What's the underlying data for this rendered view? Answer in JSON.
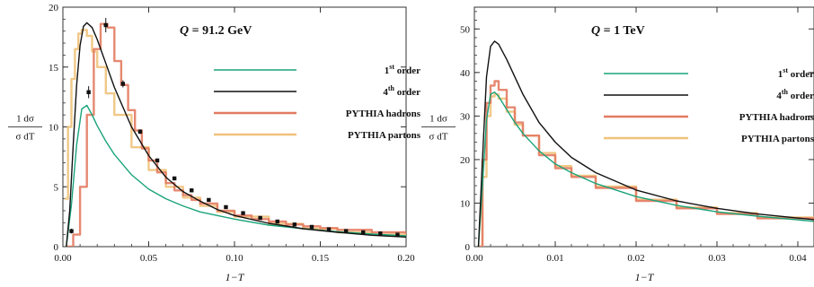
{
  "chart_data": [
    {
      "type": "line",
      "title": "Q = 91.2 GeV",
      "title_var": "Q",
      "title_rest": " = 91.2 GeV",
      "xlabel": "1−T",
      "ylabel_num": "1 dσ",
      "ylabel_den": "σ dT",
      "xlim": [
        0,
        0.2
      ],
      "ylim": [
        0,
        20
      ],
      "xticks": [
        "0.00",
        "0.05",
        "0.10",
        "0.15",
        "0.20"
      ],
      "xtick_values": [
        0,
        0.05,
        0.1,
        0.15,
        0.2
      ],
      "yticks": [
        "0",
        "5",
        "10",
        "15",
        "20"
      ],
      "ytick_values": [
        0,
        5,
        10,
        15,
        20
      ],
      "grid": false,
      "legend_position": "right",
      "series": [
        {
          "name": "1st order",
          "name_base": "1",
          "name_sup": "st",
          "name_rest": " order",
          "color": "#1aa37a",
          "x": [
            0.002,
            0.005,
            0.008,
            0.011,
            0.014,
            0.017,
            0.02,
            0.025,
            0.03,
            0.04,
            0.05,
            0.06,
            0.07,
            0.08,
            0.09,
            0.1,
            0.12,
            0.14,
            0.16,
            0.18,
            0.2
          ],
          "y": [
            0,
            3.5,
            8.5,
            11.5,
            11.8,
            11.0,
            10.1,
            8.8,
            7.7,
            6.0,
            4.8,
            4.0,
            3.4,
            2.9,
            2.6,
            2.3,
            1.8,
            1.5,
            1.25,
            1.05,
            0.9
          ]
        },
        {
          "name": "4th order",
          "name_base": "4",
          "name_sup": "th",
          "name_rest": " order",
          "color": "#111111",
          "x": [
            0.002,
            0.004,
            0.006,
            0.008,
            0.01,
            0.012,
            0.014,
            0.017,
            0.02,
            0.025,
            0.03,
            0.04,
            0.05,
            0.06,
            0.07,
            0.08,
            0.09,
            0.1,
            0.12,
            0.14,
            0.16,
            0.18,
            0.2
          ],
          "y": [
            0,
            3,
            8.5,
            13.5,
            16.8,
            18.4,
            18.7,
            18.3,
            17.3,
            15.3,
            13.3,
            10.0,
            7.6,
            5.8,
            4.6,
            3.8,
            3.1,
            2.6,
            1.95,
            1.5,
            1.2,
            0.95,
            0.8
          ]
        },
        {
          "name": "PYTHIA hadrons",
          "color": "#e37b62",
          "x": [
            0.002,
            0.006,
            0.01,
            0.014,
            0.018,
            0.022,
            0.026,
            0.03,
            0.034,
            0.038,
            0.042,
            0.046,
            0.05,
            0.055,
            0.06,
            0.065,
            0.07,
            0.075,
            0.08,
            0.09,
            0.1,
            0.11,
            0.12,
            0.13,
            0.14,
            0.15,
            0.16,
            0.18,
            0.2
          ],
          "y": [
            0,
            1,
            5,
            11,
            16.5,
            18.6,
            18.3,
            15.5,
            13.5,
            11.4,
            9.7,
            8.2,
            7.2,
            6.2,
            5.3,
            4.7,
            4.3,
            3.9,
            3.6,
            3.0,
            2.6,
            2.3,
            2.1,
            1.85,
            1.7,
            1.55,
            1.4,
            1.2,
            1.05
          ]
        },
        {
          "name": "PYTHIA partons",
          "color": "#f0c27a",
          "x": [
            0.001,
            0.003,
            0.005,
            0.007,
            0.009,
            0.011,
            0.014,
            0.017,
            0.02,
            0.025,
            0.03,
            0.04,
            0.05,
            0.06,
            0.07,
            0.08,
            0.09,
            0.1,
            0.12,
            0.14,
            0.16,
            0.18,
            0.2
          ],
          "y": [
            4,
            10,
            14,
            16.5,
            17.8,
            18.1,
            17.6,
            16.3,
            15.0,
            12.8,
            11.0,
            8.3,
            6.4,
            5.0,
            4.1,
            3.4,
            2.9,
            2.5,
            1.9,
            1.5,
            1.2,
            1.0,
            0.85
          ]
        }
      ],
      "data_points": {
        "x": [
          0.005,
          0.015,
          0.025,
          0.035,
          0.045,
          0.055,
          0.065,
          0.075,
          0.085,
          0.095,
          0.105,
          0.115,
          0.125,
          0.135,
          0.145,
          0.155,
          0.165,
          0.175,
          0.185,
          0.195
        ],
        "y": [
          1.3,
          12.9,
          18.5,
          13.6,
          9.6,
          7.2,
          5.7,
          4.7,
          3.9,
          3.3,
          2.8,
          2.4,
          2.1,
          1.85,
          1.65,
          1.45,
          1.3,
          1.2,
          1.1,
          1.0
        ],
        "err": [
          0.2,
          0.5,
          0.6,
          0.3,
          0.2,
          0.15,
          0.1,
          0.1,
          0.1,
          0.08,
          0.07,
          0.06,
          0.06,
          0.05,
          0.05,
          0.05,
          0.05,
          0.05,
          0.05,
          0.05
        ]
      }
    },
    {
      "type": "line",
      "title": "Q = 1 TeV",
      "title_var": "Q",
      "title_rest": " = 1 TeV",
      "xlabel": "1−T",
      "ylabel_num": "1 dσ",
      "ylabel_den": "σ dT",
      "xlim": [
        0,
        0.042
      ],
      "ylim": [
        0,
        55
      ],
      "xticks": [
        "0.00",
        "0.01",
        "0.02",
        "0.03",
        "0.04"
      ],
      "xtick_values": [
        0,
        0.01,
        0.02,
        0.03,
        0.04
      ],
      "yticks": [
        "0",
        "10",
        "20",
        "30",
        "40",
        "50"
      ],
      "ytick_values": [
        0,
        10,
        20,
        30,
        40,
        50
      ],
      "grid": false,
      "legend_position": "right",
      "series": [
        {
          "name": "1st order",
          "name_base": "1",
          "name_sup": "st",
          "name_rest": " order",
          "color": "#1aa37a",
          "x": [
            0.0005,
            0.001,
            0.0015,
            0.002,
            0.0025,
            0.003,
            0.004,
            0.005,
            0.006,
            0.008,
            0.01,
            0.012,
            0.015,
            0.02,
            0.025,
            0.03,
            0.035,
            0.042
          ],
          "y": [
            0,
            14,
            29,
            35,
            35.5,
            34.5,
            31.5,
            28.5,
            26,
            22,
            19,
            17,
            14.5,
            11.5,
            9.5,
            8,
            7,
            5.8
          ]
        },
        {
          "name": "4th order",
          "name_base": "4",
          "name_sup": "th",
          "name_rest": " order",
          "color": "#111111",
          "x": [
            0.0005,
            0.001,
            0.0015,
            0.002,
            0.0025,
            0.003,
            0.004,
            0.005,
            0.006,
            0.008,
            0.01,
            0.012,
            0.015,
            0.02,
            0.025,
            0.03,
            0.035,
            0.042
          ],
          "y": [
            0,
            20,
            39,
            46,
            47.2,
            46.5,
            43,
            39,
            35,
            28.5,
            24,
            20.5,
            17,
            13,
            10.5,
            8.8,
            7.5,
            6.2
          ]
        },
        {
          "name": "PYTHIA hadrons",
          "color": "#e37b62",
          "x": [
            0.0005,
            0.001,
            0.0015,
            0.002,
            0.0025,
            0.003,
            0.004,
            0.005,
            0.006,
            0.008,
            0.01,
            0.012,
            0.015,
            0.02,
            0.025,
            0.03,
            0.035,
            0.042
          ],
          "y": [
            0,
            20,
            33,
            37,
            38,
            36,
            32,
            28.5,
            25.5,
            21,
            18,
            16,
            13.5,
            10.5,
            8.8,
            7.5,
            6.5,
            5.5
          ]
        },
        {
          "name": "PYTHIA partons",
          "color": "#f0c27a",
          "x": [
            0.0005,
            0.001,
            0.0015,
            0.002,
            0.0025,
            0.003,
            0.004,
            0.005,
            0.006,
            0.008,
            0.01,
            0.012,
            0.015,
            0.02,
            0.025,
            0.03,
            0.035,
            0.042
          ],
          "y": [
            0,
            16,
            30,
            34.5,
            35,
            34,
            31,
            28,
            25.5,
            21.5,
            18.5,
            16.3,
            13.8,
            10.8,
            9,
            7.7,
            6.7,
            5.6
          ]
        }
      ]
    }
  ]
}
